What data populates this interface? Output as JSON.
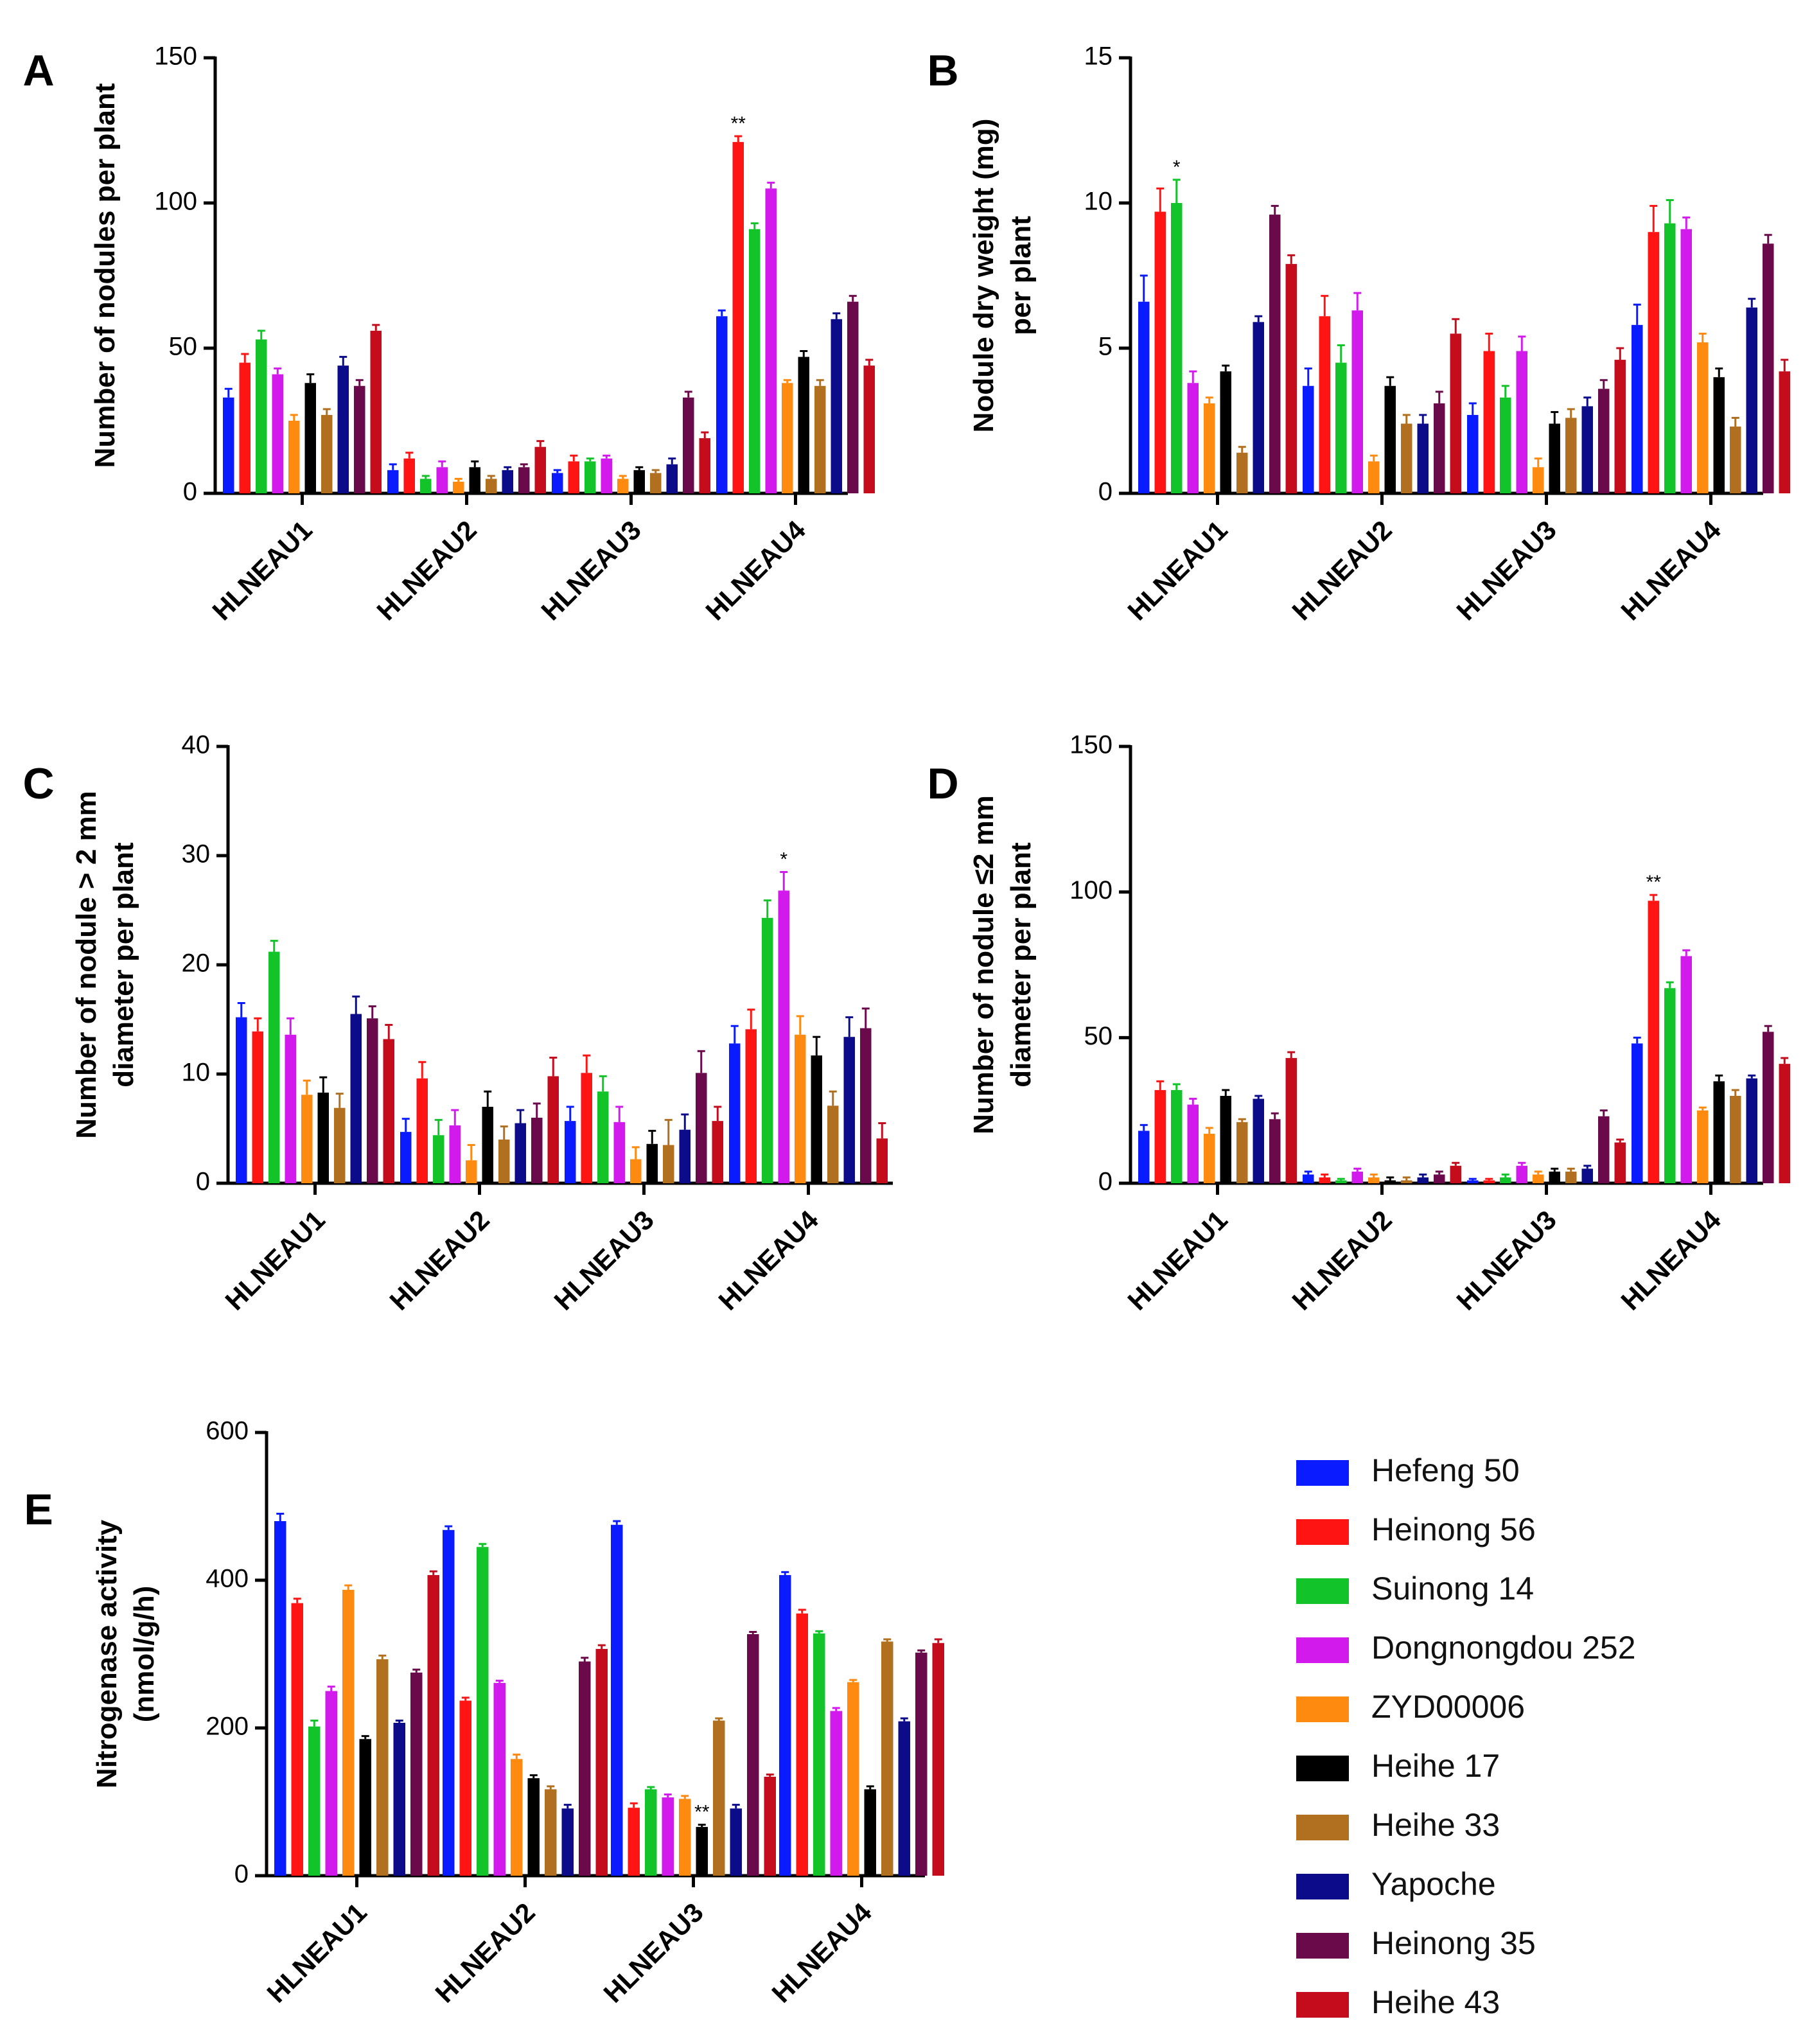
{
  "legend": {
    "entries": [
      "Hefeng 50",
      "Heinong 56",
      "Suinong 14",
      "Dongnongdou 252",
      "ZYD00006",
      "Heihe 17",
      "Heihe 33",
      "Yapoche",
      "Heinong 35",
      "Heihe 43"
    ],
    "colors": [
      "#0a1cff",
      "#ff1414",
      "#12c42a",
      "#d21aec",
      "#ff8a10",
      "#000000",
      "#b07020",
      "#0c0c8a",
      "#6a0a4a",
      "#c40c1c"
    ]
  },
  "chart_data": [
    {
      "type": "bar",
      "panel_label": "A",
      "ylabel": "Number of nodules per plant",
      "ylim": [
        0,
        150
      ],
      "yticks": [
        0,
        50,
        100,
        150
      ],
      "categories": [
        "HLNEAU1",
        "HLNEAU2",
        "HLNEAU3",
        "HLNEAU4"
      ],
      "series": [
        {
          "name": "Hefeng 50",
          "values": [
            33,
            8,
            7,
            61
          ],
          "errors": [
            3,
            2,
            1,
            2
          ]
        },
        {
          "name": "Heinong 56",
          "values": [
            45,
            12,
            11,
            121
          ],
          "errors": [
            3,
            2,
            2,
            2
          ]
        },
        {
          "name": "Suinong 14",
          "values": [
            53,
            5,
            11,
            91
          ],
          "errors": [
            3,
            1,
            1,
            2
          ]
        },
        {
          "name": "Dongnongdou 252",
          "values": [
            41,
            9,
            12,
            105
          ],
          "errors": [
            2,
            2,
            1,
            2
          ]
        },
        {
          "name": "ZYD00006",
          "values": [
            25,
            4,
            5,
            38
          ],
          "errors": [
            2,
            1,
            1,
            1
          ]
        },
        {
          "name": "Heihe 17",
          "values": [
            38,
            9,
            8,
            47
          ],
          "errors": [
            3,
            2,
            1,
            2
          ]
        },
        {
          "name": "Heihe 33",
          "values": [
            27,
            5,
            7,
            37
          ],
          "errors": [
            2,
            1,
            1,
            2
          ]
        },
        {
          "name": "Yapoche",
          "values": [
            44,
            8,
            10,
            60
          ],
          "errors": [
            3,
            1,
            2,
            2
          ]
        },
        {
          "name": "Heinong 35",
          "values": [
            37,
            9,
            33,
            66
          ],
          "errors": [
            2,
            1,
            2,
            2
          ]
        },
        {
          "name": "Heihe 43",
          "values": [
            56,
            16,
            19,
            44
          ],
          "errors": [
            2,
            2,
            2,
            2
          ]
        }
      ],
      "annotations": [
        {
          "category": "HLNEAU4",
          "series": "Heinong 56",
          "text": "**"
        }
      ]
    },
    {
      "type": "bar",
      "panel_label": "B",
      "ylabel": [
        "Nodule dry weight (mg)",
        "per plant"
      ],
      "ylim": [
        0,
        15
      ],
      "yticks": [
        0,
        5,
        10,
        15
      ],
      "categories": [
        "HLNEAU1",
        "HLNEAU2",
        "HLNEAU3",
        "HLNEAU4"
      ],
      "series": [
        {
          "name": "Hefeng 50",
          "values": [
            6.6,
            3.7,
            2.7,
            5.8
          ],
          "errors": [
            0.9,
            0.6,
            0.4,
            0.7
          ]
        },
        {
          "name": "Heinong 56",
          "values": [
            9.7,
            6.1,
            4.9,
            9.0
          ],
          "errors": [
            0.8,
            0.7,
            0.6,
            0.9
          ]
        },
        {
          "name": "Suinong 14",
          "values": [
            10.0,
            4.5,
            3.3,
            9.3
          ],
          "errors": [
            0.8,
            0.6,
            0.4,
            0.8
          ]
        },
        {
          "name": "Dongnongdou 252",
          "values": [
            3.8,
            6.3,
            4.9,
            9.1
          ],
          "errors": [
            0.4,
            0.6,
            0.5,
            0.4
          ]
        },
        {
          "name": "ZYD00006",
          "values": [
            3.1,
            1.1,
            0.9,
            5.2
          ],
          "errors": [
            0.2,
            0.2,
            0.3,
            0.3
          ]
        },
        {
          "name": "Heihe 17",
          "values": [
            4.2,
            3.7,
            2.4,
            4.0
          ],
          "errors": [
            0.2,
            0.3,
            0.4,
            0.3
          ]
        },
        {
          "name": "Heihe 33",
          "values": [
            1.4,
            2.4,
            2.6,
            2.3
          ],
          "errors": [
            0.2,
            0.3,
            0.3,
            0.3
          ]
        },
        {
          "name": "Yapoche",
          "values": [
            5.9,
            2.4,
            3.0,
            6.4
          ],
          "errors": [
            0.2,
            0.3,
            0.3,
            0.3
          ]
        },
        {
          "name": "Heinong 35",
          "values": [
            9.6,
            3.1,
            3.6,
            8.6
          ],
          "errors": [
            0.3,
            0.4,
            0.3,
            0.3
          ]
        },
        {
          "name": "Heihe 43",
          "values": [
            7.9,
            5.5,
            4.6,
            4.2
          ],
          "errors": [
            0.3,
            0.5,
            0.4,
            0.4
          ]
        }
      ],
      "annotations": [
        {
          "category": "HLNEAU1",
          "series": "Suinong 14",
          "text": "*"
        }
      ]
    },
    {
      "type": "bar",
      "panel_label": "C",
      "ylabel": [
        "Number of nodule > 2 mm",
        "diameter per plant"
      ],
      "ylim": [
        0,
        40
      ],
      "yticks": [
        0,
        10,
        20,
        30,
        40
      ],
      "categories": [
        "HLNEAU1",
        "HLNEAU2",
        "HLNEAU3",
        "HLNEAU4"
      ],
      "series": [
        {
          "name": "Hefeng 50",
          "values": [
            15.2,
            4.7,
            5.7,
            12.8
          ],
          "errors": [
            1.3,
            1.2,
            1.3,
            1.6
          ]
        },
        {
          "name": "Heinong 56",
          "values": [
            13.9,
            9.6,
            10.1,
            14.1
          ],
          "errors": [
            1.2,
            1.5,
            1.6,
            1.8
          ]
        },
        {
          "name": "Suinong 14",
          "values": [
            21.2,
            4.4,
            8.4,
            24.3
          ],
          "errors": [
            1.0,
            1.4,
            1.4,
            1.6
          ]
        },
        {
          "name": "Dongnongdou 252",
          "values": [
            13.6,
            5.3,
            5.6,
            26.8
          ],
          "errors": [
            1.5,
            1.4,
            1.4,
            1.7
          ]
        },
        {
          "name": "ZYD00006",
          "values": [
            8.1,
            2.1,
            2.2,
            13.6
          ],
          "errors": [
            1.3,
            1.4,
            1.1,
            1.7
          ]
        },
        {
          "name": "Heihe 17",
          "values": [
            8.3,
            7.0,
            3.6,
            11.7
          ],
          "errors": [
            1.4,
            1.4,
            1.2,
            1.7
          ]
        },
        {
          "name": "Heihe 33",
          "values": [
            6.9,
            4.0,
            3.5,
            7.1
          ],
          "errors": [
            1.3,
            1.2,
            2.3,
            1.3
          ]
        },
        {
          "name": "Yapoche",
          "values": [
            15.5,
            5.5,
            4.9,
            13.4
          ],
          "errors": [
            1.6,
            1.2,
            1.4,
            1.8
          ]
        },
        {
          "name": "Heinong 35",
          "values": [
            15.1,
            6.0,
            10.1,
            14.2
          ],
          "errors": [
            1.1,
            1.3,
            2.0,
            1.8
          ]
        },
        {
          "name": "Heihe 43",
          "values": [
            13.2,
            9.8,
            5.7,
            4.1
          ],
          "errors": [
            1.3,
            1.7,
            1.3,
            1.4
          ]
        }
      ],
      "annotations": [
        {
          "category": "HLNEAU4",
          "series": "Dongnongdou 252",
          "text": "*"
        }
      ]
    },
    {
      "type": "bar",
      "panel_label": "D",
      "ylabel": [
        "Number of nodule ≤2 mm",
        "diameter per plant"
      ],
      "ylim": [
        0,
        150
      ],
      "yticks": [
        0,
        50,
        100,
        150
      ],
      "categories": [
        "HLNEAU1",
        "HLNEAU2",
        "HLNEAU3",
        "HLNEAU4"
      ],
      "series": [
        {
          "name": "Hefeng 50",
          "values": [
            18,
            3,
            1,
            48
          ],
          "errors": [
            2,
            1,
            0.5,
            2
          ]
        },
        {
          "name": "Heinong 56",
          "values": [
            32,
            2,
            1,
            97
          ],
          "errors": [
            3,
            1,
            0.5,
            2
          ]
        },
        {
          "name": "Suinong 14",
          "values": [
            32,
            1,
            2,
            67
          ],
          "errors": [
            2,
            0.5,
            1,
            2
          ]
        },
        {
          "name": "Dongnongdou 252",
          "values": [
            27,
            4,
            6,
            78
          ],
          "errors": [
            2,
            1,
            1,
            2
          ]
        },
        {
          "name": "ZYD00006",
          "values": [
            17,
            2,
            3,
            25
          ],
          "errors": [
            2,
            1,
            1,
            1
          ]
        },
        {
          "name": "Heihe 17",
          "values": [
            30,
            1,
            4,
            35
          ],
          "errors": [
            2,
            1,
            1,
            2
          ]
        },
        {
          "name": "Heihe 33",
          "values": [
            21,
            1,
            4,
            30
          ],
          "errors": [
            1,
            1,
            1,
            2
          ]
        },
        {
          "name": "Yapoche",
          "values": [
            29,
            2,
            5,
            36
          ],
          "errors": [
            1,
            1,
            1,
            1
          ]
        },
        {
          "name": "Heinong 35",
          "values": [
            22,
            3,
            23,
            52
          ],
          "errors": [
            2,
            1,
            2,
            2
          ]
        },
        {
          "name": "Heihe 43",
          "values": [
            43,
            6,
            14,
            41
          ],
          "errors": [
            2,
            1,
            1,
            2
          ]
        }
      ],
      "annotations": [
        {
          "category": "HLNEAU4",
          "series": "Heinong 56",
          "text": "**"
        }
      ]
    },
    {
      "type": "bar",
      "panel_label": "E",
      "ylabel": [
        "Nitrogenase activity",
        "(nmol/g/h)"
      ],
      "ylim": [
        0,
        600
      ],
      "yticks": [
        0,
        200,
        400,
        600
      ],
      "categories": [
        "HLNEAU1",
        "HLNEAU2",
        "HLNEAU3",
        "HLNEAU4"
      ],
      "series": [
        {
          "name": "Hefeng 50",
          "values": [
            480,
            468,
            475,
            407
          ],
          "errors": [
            10,
            5,
            5,
            4
          ]
        },
        {
          "name": "Heinong 56",
          "values": [
            369,
            237,
            92,
            355
          ],
          "errors": [
            6,
            4,
            6,
            5
          ]
        },
        {
          "name": "Suinong 14",
          "values": [
            202,
            445,
            117,
            328
          ],
          "errors": [
            8,
            4,
            3,
            3
          ]
        },
        {
          "name": "Dongnongdou 252",
          "values": [
            250,
            261,
            106,
            223
          ],
          "errors": [
            6,
            3,
            4,
            4
          ]
        },
        {
          "name": "ZYD00006",
          "values": [
            387,
            158,
            104,
            262
          ],
          "errors": [
            6,
            6,
            4,
            3
          ]
        },
        {
          "name": "Heihe 17",
          "values": [
            185,
            132,
            66,
            117
          ],
          "errors": [
            4,
            4,
            3,
            4
          ]
        },
        {
          "name": "Heihe 33",
          "values": [
            293,
            117,
            210,
            317
          ],
          "errors": [
            5,
            4,
            3,
            3
          ]
        },
        {
          "name": "Yapoche",
          "values": [
            207,
            91,
            91,
            209
          ],
          "errors": [
            3,
            5,
            5,
            4
          ]
        },
        {
          "name": "Heinong 35",
          "values": [
            275,
            290,
            327,
            302
          ],
          "errors": [
            4,
            5,
            3,
            3
          ]
        },
        {
          "name": "Heihe 43",
          "values": [
            407,
            307,
            134,
            315
          ],
          "errors": [
            5,
            5,
            3,
            5
          ]
        }
      ],
      "annotations": [
        {
          "category": "HLNEAU3",
          "series": "Heihe 17",
          "text": "**"
        }
      ]
    }
  ]
}
